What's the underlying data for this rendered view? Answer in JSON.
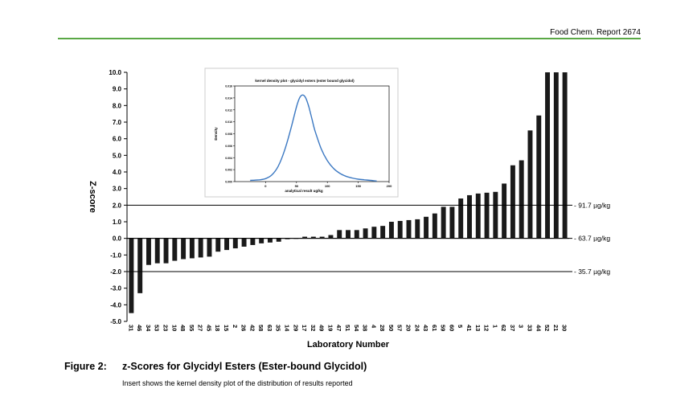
{
  "header": {
    "report": "Food Chem. Report 2674"
  },
  "caption": {
    "number": "Figure 2:",
    "title": "z-Scores for Glycidyl Esters (Ester-bound Glycidol)",
    "note": "Insert shows the kernel density plot of the distribution of results reported"
  },
  "chart_data": [
    {
      "type": "bar",
      "xlabel": "Laboratory Number",
      "ylabel": "Z-score",
      "ylim": [
        -5.0,
        10.0
      ],
      "yticks": [
        "10.0",
        "9.0",
        "8.0",
        "7.0",
        "6.0",
        "5.0",
        "4.0",
        "3.0",
        "2.0",
        "1.0",
        "0.0",
        "-1.0",
        "-2.0",
        "-3.0",
        "-4.0",
        "-5.0"
      ],
      "categories": [
        "31",
        "46",
        "34",
        "53",
        "23",
        "10",
        "48",
        "55",
        "27",
        "45",
        "18",
        "15",
        "2",
        "26",
        "42",
        "58",
        "63",
        "35",
        "14",
        "29",
        "17",
        "32",
        "49",
        "19",
        "47",
        "51",
        "54",
        "38",
        "4",
        "28",
        "50",
        "57",
        "20",
        "24",
        "43",
        "61",
        "59",
        "60",
        "5",
        "41",
        "13",
        "12",
        "1",
        "62",
        "37",
        "3",
        "33",
        "44",
        "52",
        "21",
        "30"
      ],
      "values": [
        -4.5,
        -3.3,
        -1.6,
        -1.5,
        -1.5,
        -1.35,
        -1.25,
        -1.2,
        -1.15,
        -1.1,
        -0.8,
        -0.7,
        -0.6,
        -0.5,
        -0.4,
        -0.3,
        -0.25,
        -0.2,
        -0.05,
        0.0,
        0.1,
        0.1,
        0.1,
        0.2,
        0.5,
        0.5,
        0.5,
        0.6,
        0.7,
        0.75,
        1.0,
        1.05,
        1.1,
        1.15,
        1.3,
        1.5,
        1.9,
        1.9,
        2.4,
        2.6,
        2.7,
        2.75,
        2.8,
        3.3,
        4.4,
        4.7,
        6.5,
        7.4,
        10.0,
        10.0,
        10.0
      ],
      "reference_lines": [
        {
          "y": 2.0,
          "label": "91.7 µg/kg"
        },
        {
          "y": 0.0,
          "label": "63.7 µg/kg"
        },
        {
          "y": -2.0,
          "label": "35.7 µg/kg"
        }
      ],
      "grid": false
    },
    {
      "type": "line",
      "title": "kernel density plot - glycidyl esters (ester bound glycidol)",
      "xlabel": "analytical result ug/kg",
      "ylabel": "Density",
      "xlim": [
        -50,
        200
      ],
      "xticks": [
        "0",
        "50",
        "100",
        "150",
        "200"
      ],
      "yticks": [
        "0.016",
        "0.014",
        "0.012",
        "0.010",
        "0.008",
        "0.006",
        "0.004",
        "0.002",
        "0.000"
      ],
      "ylim": [
        0,
        0.016
      ],
      "x": [
        -25,
        -10,
        0,
        10,
        20,
        30,
        40,
        50,
        55,
        60,
        65,
        70,
        75,
        80,
        90,
        100,
        110,
        120,
        130,
        140,
        150,
        160,
        170,
        180
      ],
      "y": [
        0.0002,
        0.0003,
        0.0005,
        0.0011,
        0.0025,
        0.005,
        0.0085,
        0.0125,
        0.014,
        0.0145,
        0.014,
        0.0125,
        0.0105,
        0.0085,
        0.0055,
        0.0035,
        0.0022,
        0.0014,
        0.0009,
        0.0006,
        0.0004,
        0.0003,
        0.0002,
        0.0001
      ]
    }
  ],
  "colors": {
    "bar": "#1a1a1a",
    "density": "#3b78c2",
    "header_rule": "#5aa845"
  }
}
